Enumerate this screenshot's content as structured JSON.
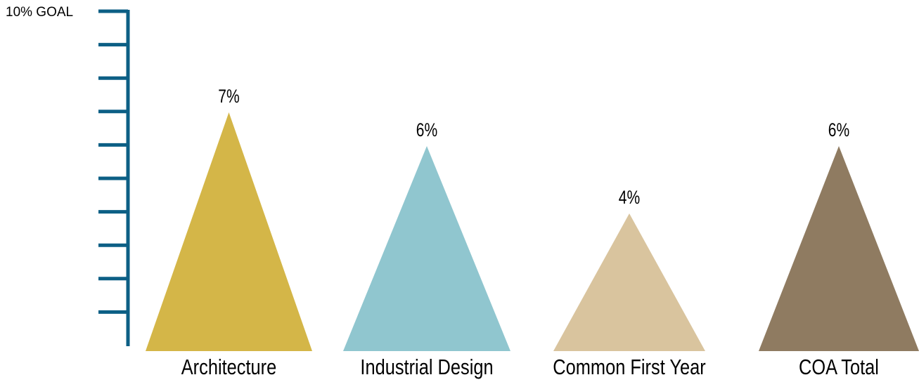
{
  "chart_data": {
    "type": "bar",
    "shape": "triangle",
    "goal_label": "10% GOAL",
    "ylim": [
      0,
      10
    ],
    "y_ticks": 10,
    "categories": [
      "Architecture",
      "Industrial Design",
      "Common First Year",
      "COA Total"
    ],
    "values": [
      7,
      6,
      4,
      6
    ],
    "value_labels": [
      "7%",
      "6%",
      "4%",
      "6%"
    ],
    "colors": [
      "#D4B648",
      "#90C6CF",
      "#D9C49E",
      "#8F7B61"
    ],
    "axis_color": "#0C5F85"
  }
}
